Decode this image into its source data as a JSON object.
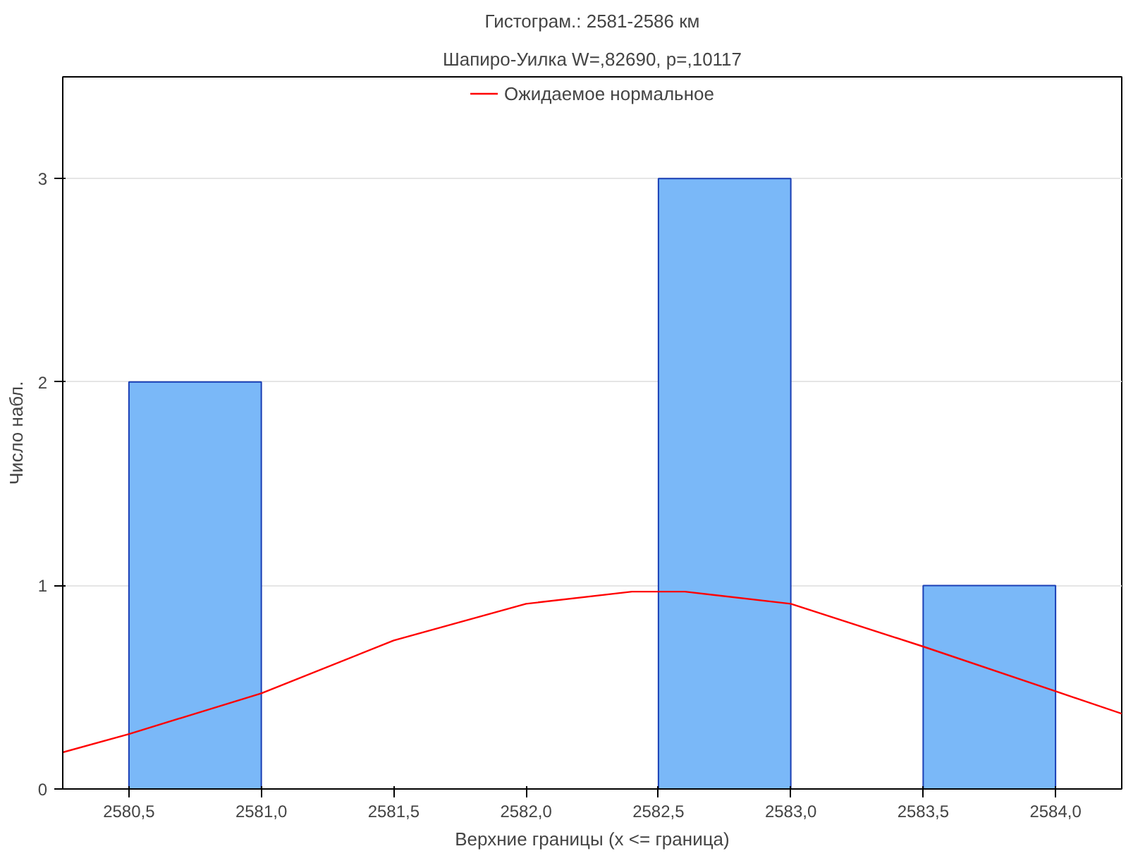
{
  "chart_data": {
    "type": "histogram",
    "title": "Гистограм.: 2581-2586 км",
    "subtitle": "Шапиро-Уилка W=,82690, p=,10117",
    "xlabel": "Верхние границы (x <= граница)",
    "ylabel": "Число набл.",
    "bins": [
      2580.5,
      2581.0,
      2581.5,
      2582.0,
      2582.5,
      2583.0,
      2583.5,
      2584.0
    ],
    "series": [
      {
        "color": "#7ab8f8",
        "values": [
          2,
          0,
          0,
          0,
          3,
          0,
          1
        ]
      },
      {
        "type": "line",
        "name": "Ожидаемое нормальное",
        "color": "#ff0000",
        "x": [
          2580.25,
          2580.5,
          2581.0,
          2581.5,
          2582.0,
          2582.4,
          2582.6,
          2583.0,
          2583.5,
          2584.0,
          2584.25
        ],
        "values": [
          0.18,
          0.27,
          0.47,
          0.73,
          0.91,
          0.97,
          0.97,
          0.91,
          0.7,
          0.48,
          0.37
        ]
      }
    ],
    "xlim": [
      2580.25,
      2584.25
    ],
    "ylim": [
      0,
      3.5
    ],
    "xticks": [
      {
        "value": 2580.5,
        "label": "2580,5"
      },
      {
        "value": 2581.0,
        "label": "2581,0"
      },
      {
        "value": 2581.5,
        "label": "2581,5"
      },
      {
        "value": 2582.0,
        "label": "2582,0"
      },
      {
        "value": 2582.5,
        "label": "2582,5"
      },
      {
        "value": 2583.0,
        "label": "2583,0"
      },
      {
        "value": 2583.5,
        "label": "2583,5"
      },
      {
        "value": 2584.0,
        "label": "2584,0"
      }
    ],
    "yticks": [
      0,
      1,
      2,
      3
    ],
    "grid": "y",
    "legend": "top"
  }
}
